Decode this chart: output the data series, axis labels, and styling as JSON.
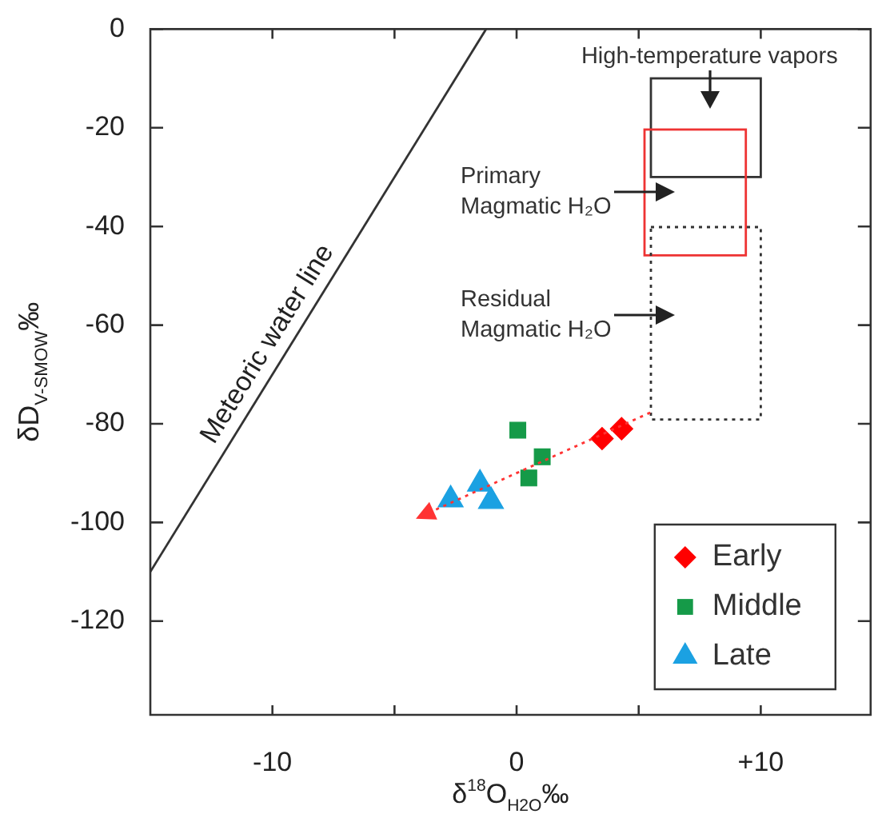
{
  "chart_data": {
    "type": "scatter",
    "xlabel": "δ$^{18}$O$_{H2O}$‰",
    "ylabel": "δD$_{V-SMOW}$‰",
    "xlim": [
      -15,
      14.5
    ],
    "ylim": [
      -139,
      0
    ],
    "xticks": [
      -10,
      {
        "value": -5,
        "label": null
      },
      0,
      {
        "value": 5,
        "label": null
      },
      {
        "value": 10,
        "label": "+10"
      }
    ],
    "yticks": [
      -120,
      -100,
      -80,
      -60,
      -40,
      -20,
      0
    ],
    "grid": false,
    "legend": "bottom right",
    "series": [
      {
        "type": "line",
        "name": "Meteoric water line",
        "color": "#333333",
        "x": [
          -15,
          -1.25
        ],
        "values": [
          -110,
          0
        ],
        "line_style": "solid",
        "marker": "none"
      },
      {
        "name": "Early",
        "color": "#ff0000",
        "marker": "diamond",
        "x": [
          3.5,
          4.3
        ],
        "values": [
          -83,
          -81
        ]
      },
      {
        "name": "Middle",
        "color": "#159a48",
        "marker": "square",
        "x": [
          0.05,
          1.05,
          0.5
        ],
        "values": [
          -81.3,
          -86.7,
          -91
        ]
      },
      {
        "name": "Late",
        "color": "#1ba1e2",
        "marker": "triangle",
        "x": [
          -2.7,
          -1.5,
          -1.05
        ],
        "values": [
          -95.4,
          -92.2,
          -95.7
        ]
      }
    ],
    "annotations": [
      "High-temperature vapors",
      "Primary\nMagmatic H₂O",
      "Residual\nMagmatic H₂O"
    ]
  }
}
